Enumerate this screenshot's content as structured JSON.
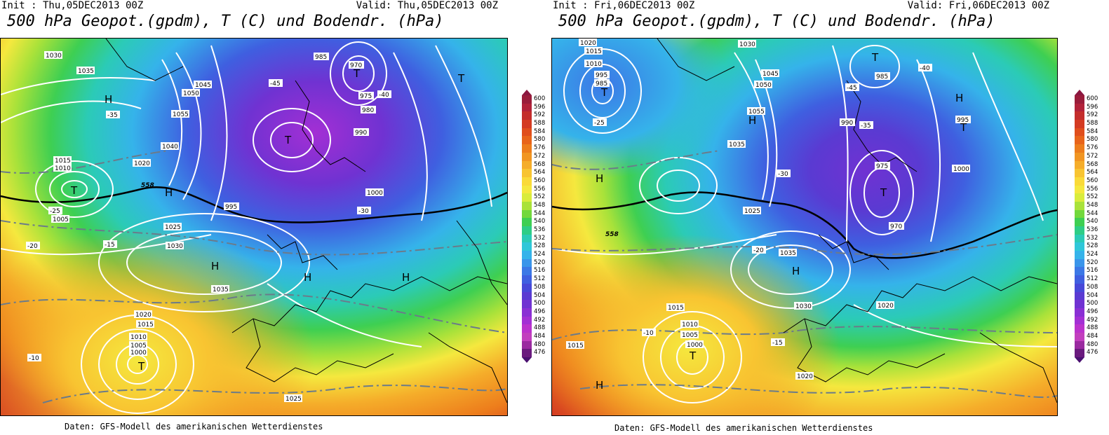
{
  "panels": [
    {
      "init_text": "Init : Thu,05DEC2013 00Z",
      "valid_text": "Valid: Thu,05DEC2013 00Z",
      "title": "500 hPa Geopot.(gpdm), T (C) und Bodendr. (hPa)",
      "footer": "Daten: GFS-Modell des amerikanischen Wetterdienstes",
      "pressure_labels": [
        "1030",
        "1035",
        "1040",
        "1045",
        "1050",
        "1055",
        "1015",
        "1010",
        "1005",
        "1000",
        "995",
        "990",
        "985",
        "980",
        "975",
        "970",
        "1020",
        "1025",
        "1030",
        "1035",
        "1020",
        "1015",
        "1010",
        "1005",
        "1000",
        "1025"
      ],
      "temp_labels": [
        "-45",
        "-40",
        "-35",
        "-30",
        "-25",
        "-20",
        "-15",
        "-10"
      ],
      "h_t_markers": [
        "H",
        "T",
        "H",
        "T",
        "H",
        "T",
        "H",
        "T",
        "H",
        "T"
      ],
      "isoline_558": "558"
    },
    {
      "init_text": "Init : Fri,06DEC2013 00Z",
      "valid_text": "Valid: Fri,06DEC2013 00Z",
      "title": "500 hPa Geopot.(gpdm), T (C) und Bodendr. (hPa)",
      "footer": "Daten: GFS-Modell des amerikanischen Wetterdienstes",
      "pressure_labels": [
        "1020",
        "1015",
        "1010",
        "995",
        "985",
        "1030",
        "1045",
        "1050",
        "1055",
        "1035",
        "990",
        "985",
        "975",
        "970",
        "995",
        "1000",
        "1035",
        "1030",
        "1025",
        "1020",
        "1015",
        "1010",
        "1005",
        "1000",
        "1015",
        "1020"
      ],
      "temp_labels": [
        "-45",
        "-40",
        "-35",
        "-30",
        "-25",
        "-20",
        "-15",
        "-10"
      ],
      "h_t_markers": [
        "H",
        "T",
        "H",
        "T",
        "H",
        "T",
        "H",
        "T",
        "H",
        "T"
      ],
      "isoline_558": "558"
    }
  ],
  "legend": {
    "values": [
      "600",
      "596",
      "592",
      "588",
      "584",
      "580",
      "576",
      "572",
      "568",
      "564",
      "560",
      "556",
      "552",
      "548",
      "544",
      "540",
      "536",
      "532",
      "528",
      "524",
      "520",
      "516",
      "512",
      "508",
      "504",
      "500",
      "496",
      "492",
      "488",
      "484",
      "480",
      "476"
    ],
    "colors": [
      "#9a1d3b",
      "#b2223a",
      "#c42d2c",
      "#d43b22",
      "#e04e1c",
      "#e8641a",
      "#ed7d1c",
      "#f19522",
      "#f5ad2a",
      "#f8c431",
      "#fada38",
      "#f5e83e",
      "#d9ec3c",
      "#a9e23a",
      "#72d83c",
      "#3ecf52",
      "#2ecd86",
      "#2bcbb6",
      "#2fc7d9",
      "#35b3ea",
      "#3a95ea",
      "#3c78e6",
      "#3f5fe0",
      "#4748d8",
      "#5a3ad2",
      "#7032d2",
      "#8a2fd4",
      "#a32fd4",
      "#bb32cc",
      "#c23fbe",
      "#9a2aa0",
      "#6a1a7e"
    ],
    "unit_note": "gpdm"
  },
  "chart_data": {
    "type": "map",
    "variable": "500 hPa Geopot.(gpdm), T (C) und Bodendr. (hPa)",
    "color_scale_gpdm": [
      476,
      600
    ],
    "maps": [
      {
        "init": "Thu,05DEC2013 00Z",
        "valid": "Thu,05DEC2013 00Z"
      },
      {
        "init": "Fri,06DEC2013 00Z",
        "valid": "Fri,06DEC2013 00Z"
      }
    ]
  }
}
